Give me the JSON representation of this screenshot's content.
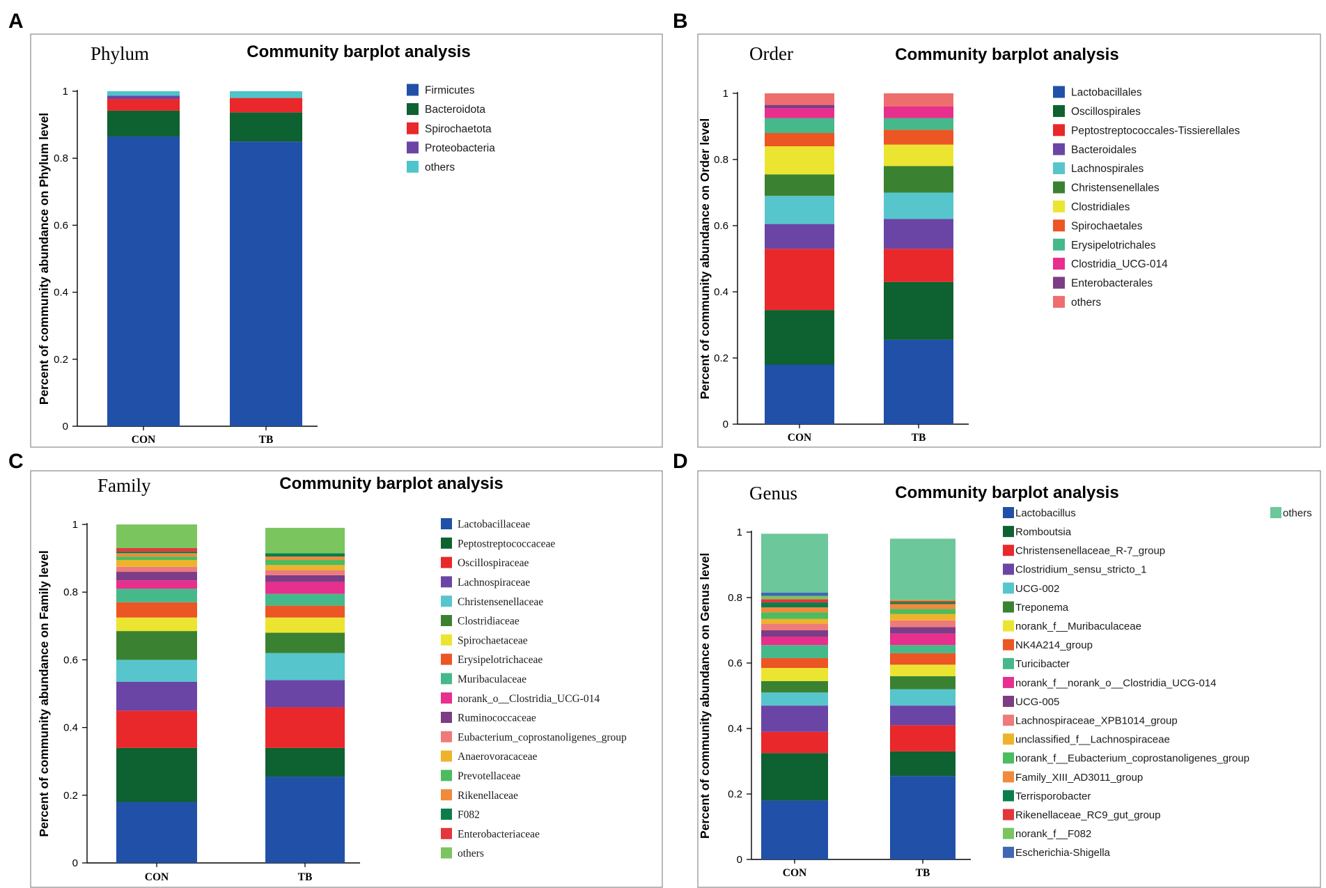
{
  "figure": {
    "panels": [
      {
        "letter": "A",
        "rank": "Phylum",
        "title": "Community barplot analysis",
        "ylabel": "Percent of community abundance on Phylum level",
        "legend_font": "sans"
      },
      {
        "letter": "B",
        "rank": "Order",
        "title": "Community barplot analysis",
        "ylabel": "Percent of community abundance on Order level",
        "legend_font": "sans"
      },
      {
        "letter": "C",
        "rank": "Family",
        "title": "Community barplot analysis",
        "ylabel": "Percent of community abundance on Family level",
        "legend_font": "serif"
      },
      {
        "letter": "D",
        "rank": "Genus",
        "title": "Community barplot analysis",
        "ylabel": "Percent of community abundance on Genus level",
        "legend_font": "sans"
      }
    ]
  },
  "chart_data": [
    {
      "type": "bar",
      "stacked": true,
      "title": "Community barplot analysis",
      "subtitle": "Phylum",
      "xlabel": "",
      "ylabel": "Percent of community abundance on Phylum level",
      "categories": [
        "CON",
        "TB"
      ],
      "ylim": [
        0,
        1
      ],
      "yticks": [
        0,
        0.2,
        0.4,
        0.6,
        0.8,
        1
      ],
      "ytick_labels": [
        "0",
        "0.2",
        "0.4",
        "0.6",
        "0.8",
        "1"
      ],
      "series": [
        {
          "name": "Firmicutes",
          "color": "#2150A8",
          "values": [
            0.865,
            0.85
          ]
        },
        {
          "name": "Bacteroidota",
          "color": "#0E6130",
          "values": [
            0.077,
            0.087
          ]
        },
        {
          "name": "Spirochaetota",
          "color": "#E8282B",
          "values": [
            0.035,
            0.043
          ]
        },
        {
          "name": "Proteobacteria",
          "color": "#6A45A6",
          "values": [
            0.01,
            0.0
          ]
        },
        {
          "name": "others",
          "color": "#4EC4CB",
          "values": [
            0.013,
            0.02
          ]
        }
      ]
    },
    {
      "type": "bar",
      "stacked": true,
      "title": "Community barplot analysis",
      "subtitle": "Order",
      "xlabel": "",
      "ylabel": "Percent of community abundance on Order level",
      "categories": [
        "CON",
        "TB"
      ],
      "ylim": [
        0,
        1
      ],
      "yticks": [
        0,
        0.2,
        0.4,
        0.6,
        0.8,
        1
      ],
      "ytick_labels": [
        "0",
        "0.2",
        "0.4",
        "0.6",
        "0.8",
        "1"
      ],
      "series": [
        {
          "name": "Lactobacillales",
          "color": "#2150A8",
          "values": [
            0.18,
            0.255
          ]
        },
        {
          "name": "Oscillospirales",
          "color": "#0E6130",
          "values": [
            0.165,
            0.175
          ]
        },
        {
          "name": "Peptostreptococcales-Tissierellales",
          "color": "#E8282B",
          "values": [
            0.185,
            0.1
          ]
        },
        {
          "name": "Bacteroidales",
          "color": "#6A45A6",
          "values": [
            0.075,
            0.09
          ]
        },
        {
          "name": "Lachnospirales",
          "color": "#57C5CC",
          "values": [
            0.085,
            0.08
          ]
        },
        {
          "name": "Christensenellales",
          "color": "#3A8231",
          "values": [
            0.065,
            0.08
          ]
        },
        {
          "name": "Clostridiales",
          "color": "#EBE531",
          "values": [
            0.085,
            0.065
          ]
        },
        {
          "name": "Spirochaetales",
          "color": "#EC5524",
          "values": [
            0.04,
            0.045
          ]
        },
        {
          "name": "Erysipelotrichales",
          "color": "#45B98A",
          "values": [
            0.045,
            0.035
          ]
        },
        {
          "name": "Clostridia_UCG-014",
          "color": "#E72F8D",
          "values": [
            0.03,
            0.035
          ]
        },
        {
          "name": "Enterobacterales",
          "color": "#7D3C86",
          "values": [
            0.01,
            0.0
          ]
        },
        {
          "name": "others",
          "color": "#EE6E6E",
          "values": [
            0.035,
            0.04
          ]
        }
      ]
    },
    {
      "type": "bar",
      "stacked": true,
      "title": "Community barplot analysis",
      "subtitle": "Family",
      "xlabel": "",
      "ylabel": "Percent of community abundance on Family level",
      "categories": [
        "CON",
        "TB"
      ],
      "ylim": [
        0,
        1
      ],
      "yticks": [
        0,
        0.2,
        0.4,
        0.6,
        0.8,
        1
      ],
      "ytick_labels": [
        "0",
        "0.2",
        "0.4",
        "0.6",
        "0.8",
        "1"
      ],
      "series": [
        {
          "name": "Lactobacillaceae",
          "color": "#2150A8",
          "values": [
            0.18,
            0.255
          ]
        },
        {
          "name": "Peptostreptococcaceae",
          "color": "#0E6130",
          "values": [
            0.16,
            0.085
          ]
        },
        {
          "name": "Oscillospiraceae",
          "color": "#E8282B",
          "values": [
            0.11,
            0.12
          ]
        },
        {
          "name": "Lachnospiraceae",
          "color": "#6A45A6",
          "values": [
            0.085,
            0.08
          ]
        },
        {
          "name": "Christensenellaceae",
          "color": "#57C5CC",
          "values": [
            0.065,
            0.08
          ]
        },
        {
          "name": "Clostridiaceae",
          "color": "#3A8231",
          "values": [
            0.085,
            0.06
          ]
        },
        {
          "name": "Spirochaetaceae",
          "color": "#EBE531",
          "values": [
            0.04,
            0.045
          ]
        },
        {
          "name": "Erysipelotrichaceae",
          "color": "#EC5524",
          "values": [
            0.045,
            0.035
          ]
        },
        {
          "name": "Muribaculaceae",
          "color": "#45B98A",
          "values": [
            0.04,
            0.035
          ]
        },
        {
          "name": "norank_o__Clostridia_UCG-014",
          "color": "#E72F8D",
          "values": [
            0.025,
            0.035
          ]
        },
        {
          "name": "Ruminococcaceae",
          "color": "#7D3C86",
          "values": [
            0.025,
            0.02
          ]
        },
        {
          "name": "Eubacterium_coprostanoligenes_group",
          "color": "#EE7B7B",
          "values": [
            0.015,
            0.015
          ]
        },
        {
          "name": "Anaerovoracaceae",
          "color": "#EDB42B",
          "values": [
            0.02,
            0.015
          ]
        },
        {
          "name": "Prevotellaceae",
          "color": "#4DBB5F",
          "values": [
            0.01,
            0.015
          ]
        },
        {
          "name": "Rikenellaceae",
          "color": "#F08A3C",
          "values": [
            0.01,
            0.01
          ]
        },
        {
          "name": "F082",
          "color": "#0B7D4B",
          "values": [
            0.005,
            0.01
          ]
        },
        {
          "name": "Enterobacteriaceae",
          "color": "#E3373B",
          "values": [
            0.01,
            0.0
          ]
        },
        {
          "name": "others",
          "color": "#7BC55E",
          "values": [
            0.07,
            0.075
          ]
        }
      ]
    },
    {
      "type": "bar",
      "stacked": true,
      "title": "Community barplot analysis",
      "subtitle": "Genus",
      "xlabel": "",
      "ylabel": "Percent of community abundance on Genus level",
      "categories": [
        "CON",
        "TB"
      ],
      "ylim": [
        0,
        1
      ],
      "yticks": [
        0,
        0.2,
        0.4,
        0.6,
        0.8,
        1
      ],
      "ytick_labels": [
        "0",
        "0.2",
        "0.4",
        "0.6",
        "0.8",
        "1"
      ],
      "series": [
        {
          "name": "Lactobacillus",
          "color": "#2150A8",
          "values": [
            0.18,
            0.255
          ]
        },
        {
          "name": "Romboutsia",
          "color": "#0E6130",
          "values": [
            0.145,
            0.075
          ]
        },
        {
          "name": "Christensenellaceae_R-7_group",
          "color": "#E8282B",
          "values": [
            0.065,
            0.08
          ]
        },
        {
          "name": "Clostridium_sensu_stricto_1",
          "color": "#6A45A6",
          "values": [
            0.08,
            0.06
          ]
        },
        {
          "name": "UCG-002",
          "color": "#57C5CC",
          "values": [
            0.04,
            0.05
          ]
        },
        {
          "name": "Treponema",
          "color": "#3A8231",
          "values": [
            0.035,
            0.04
          ]
        },
        {
          "name": "norank_f__Muribaculaceae",
          "color": "#EBE531",
          "values": [
            0.04,
            0.035
          ]
        },
        {
          "name": "NK4A214_group",
          "color": "#EC5524",
          "values": [
            0.03,
            0.035
          ]
        },
        {
          "name": "Turicibacter",
          "color": "#45B98A",
          "values": [
            0.04,
            0.025
          ]
        },
        {
          "name": "norank_f__norank_o__Clostridia_UCG-014",
          "color": "#E72F8D",
          "values": [
            0.025,
            0.035
          ]
        },
        {
          "name": "UCG-005",
          "color": "#7D3C86",
          "values": [
            0.02,
            0.02
          ]
        },
        {
          "name": "Lachnospiraceae_XPB1014_group",
          "color": "#EE7B7B",
          "values": [
            0.02,
            0.02
          ]
        },
        {
          "name": "unclassified_f__Lachnospiraceae",
          "color": "#EDB42B",
          "values": [
            0.015,
            0.02
          ]
        },
        {
          "name": "norank_f__Eubacterium_coprostanoligenes_group",
          "color": "#4DBB5F",
          "values": [
            0.02,
            0.015
          ]
        },
        {
          "name": "Family_XIII_AD3011_group",
          "color": "#F08A3C",
          "values": [
            0.015,
            0.015
          ]
        },
        {
          "name": "Terrisporobacter",
          "color": "#0B7D4B",
          "values": [
            0.015,
            0.005
          ]
        },
        {
          "name": "Rikenellaceae_RC9_gut_group",
          "color": "#E3373B",
          "values": [
            0.01,
            0.005
          ]
        },
        {
          "name": "norank_f__F082",
          "color": "#7BC55E",
          "values": [
            0.01,
            0.005
          ]
        },
        {
          "name": "Escherichia-Shigella",
          "color": "#3F67B5",
          "values": [
            0.01,
            0.0
          ]
        },
        {
          "name": "others",
          "color": "#6CC79A",
          "values": [
            0.18,
            0.185
          ]
        }
      ]
    }
  ]
}
